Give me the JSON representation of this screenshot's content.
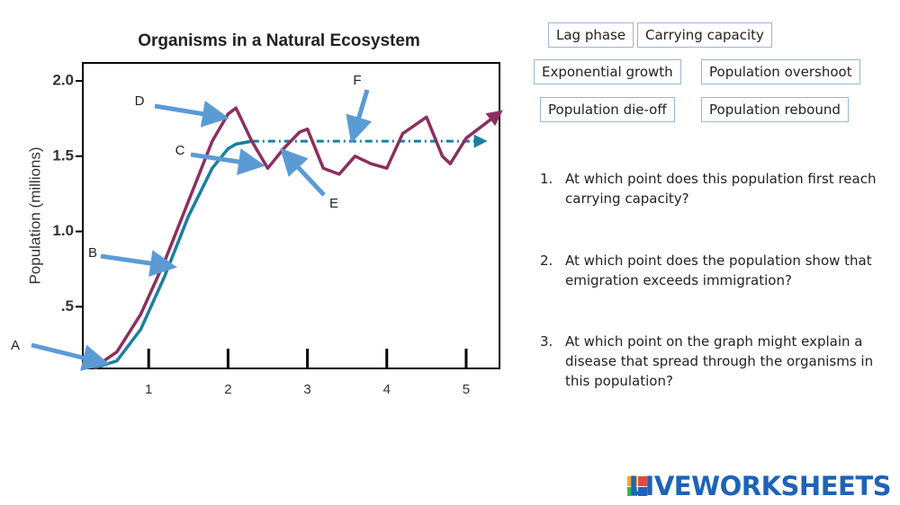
{
  "chart_data": {
    "type": "line",
    "title": "Organisms in a Natural Ecosystem",
    "y_label": "Population (millions)",
    "x": [
      0.3,
      0.6,
      0.9,
      1.2,
      1.5,
      1.8,
      2.0,
      2.1,
      2.3,
      2.5,
      2.7,
      2.9,
      3.0,
      3.2,
      3.4,
      3.6,
      3.8,
      4.0,
      4.2,
      4.5,
      4.7,
      4.8,
      5.0,
      5.2,
      5.4
    ],
    "xlim": [
      0.17,
      5.42
    ],
    "ylim": [
      0.09,
      2.12
    ],
    "xticks": [
      1,
      2,
      3,
      4,
      5
    ],
    "yticks": [
      {
        "value": 0.5,
        "label": ".5"
      },
      {
        "value": 1,
        "label": "1.0"
      },
      {
        "value": 1.5,
        "label": "1.5"
      },
      {
        "value": 2,
        "label": "2.0"
      }
    ],
    "series": [
      {
        "color": "#1a7fa0",
        "dashed": false,
        "values": [
          0.09,
          0.14,
          0.35,
          0.7,
          1.1,
          1.42,
          1.55,
          1.58,
          1.6,
          null,
          null,
          null,
          null,
          null,
          null,
          null,
          null,
          null,
          null,
          null,
          null,
          null,
          null,
          null,
          null
        ]
      },
      {
        "color": "#1a7fa0",
        "dashed": true,
        "values": [
          null,
          null,
          null,
          null,
          null,
          null,
          null,
          null,
          1.6,
          1.6,
          1.6,
          1.6,
          1.6,
          1.6,
          1.6,
          1.6,
          1.6,
          1.6,
          1.6,
          1.6,
          1.6,
          1.6,
          1.6,
          1.6,
          null
        ]
      },
      {
        "color": "#8b2f5e",
        "dashed": false,
        "values": [
          0.09,
          0.2,
          0.45,
          0.8,
          1.2,
          1.6,
          1.78,
          1.82,
          1.6,
          1.42,
          1.55,
          1.66,
          1.68,
          1.42,
          1.38,
          1.5,
          1.45,
          1.42,
          1.65,
          1.76,
          1.5,
          1.45,
          1.62,
          1.7,
          1.78
        ]
      }
    ],
    "annotations": [
      "A",
      "B",
      "C",
      "D",
      "E",
      "F"
    ]
  },
  "word_bank": [
    "Lag phase",
    "Carrying capacity",
    "Exponential growth",
    "Population overshoot",
    "Population die-off",
    "Population rebound"
  ],
  "questions": [
    {
      "number": "1.",
      "text": "At which point does this population first reach carrying capacity?"
    },
    {
      "number": "2.",
      "text": "At which point does the population show that emigration exceeds immigration?"
    },
    {
      "number": "3.",
      "text": "At which point on the graph might explain a disease that spread through the organisms in this population?"
    }
  ],
  "brand": "LIVEWORKSHEETS"
}
